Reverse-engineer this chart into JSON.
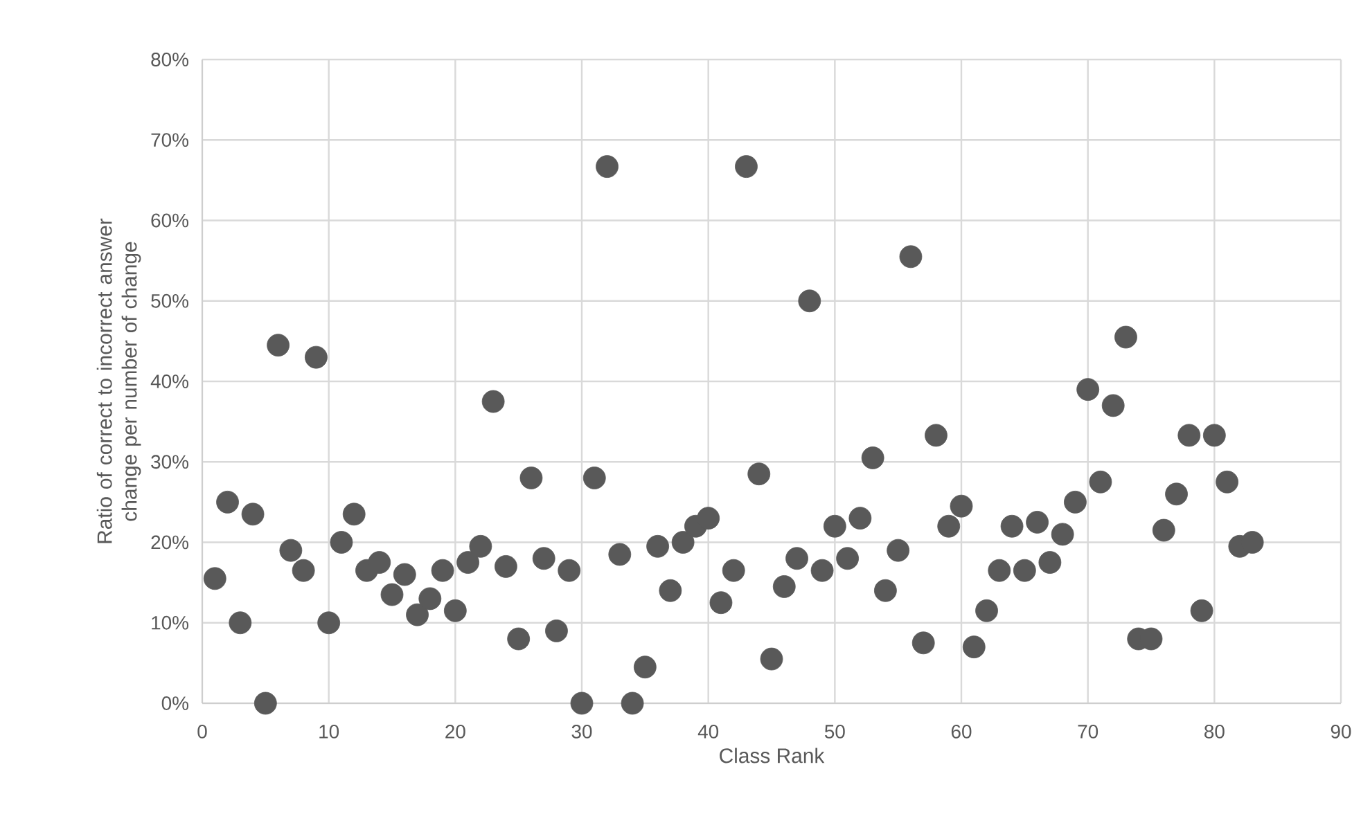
{
  "chart_data": {
    "type": "scatter",
    "xlabel": "Class Rank",
    "ylabel": "Ratio of correct to incorrect answer change per number of change",
    "x": [
      1,
      2,
      3,
      4,
      5,
      6,
      7,
      8,
      9,
      10,
      11,
      12,
      13,
      14,
      15,
      16,
      17,
      18,
      19,
      20,
      21,
      22,
      23,
      24,
      25,
      26,
      27,
      28,
      29,
      30,
      31,
      32,
      33,
      34,
      35,
      36,
      37,
      38,
      39,
      40,
      41,
      42,
      43,
      44,
      45,
      46,
      47,
      48,
      49,
      50,
      51,
      52,
      53,
      54,
      55,
      56,
      57,
      58,
      59,
      60,
      61,
      62,
      63,
      64,
      65,
      66,
      67,
      68,
      69,
      70,
      71,
      72,
      73,
      74,
      75,
      76,
      77,
      78,
      79,
      80,
      81,
      82,
      83
    ],
    "series": [
      {
        "color": "#595959",
        "values": [
          15.5,
          25,
          10,
          23.5,
          0,
          44.5,
          19,
          16.5,
          43,
          10,
          20,
          23.5,
          16.5,
          17.5,
          13.5,
          16,
          11,
          13,
          16.5,
          11.5,
          17.5,
          19.5,
          37.5,
          17,
          8,
          28,
          18,
          9,
          16.5,
          0,
          28,
          66.7,
          18.5,
          0,
          4.5,
          19.5,
          14,
          20,
          22,
          23,
          12.5,
          16.5,
          66.7,
          28.5,
          5.5,
          14.5,
          18,
          50,
          16.5,
          22,
          18,
          23,
          30.5,
          14,
          19,
          55.5,
          7.5,
          33.3,
          22,
          24.5,
          7,
          11.5,
          16.5,
          22,
          16.5,
          22.5,
          17.5,
          21,
          25,
          39,
          27.5,
          37,
          45.5,
          8,
          8,
          21.5,
          26,
          33.3,
          11.5,
          33.3,
          27.5,
          19.5,
          20
        ]
      }
    ],
    "xlim": [
      0,
      90
    ],
    "xticks": [
      0,
      10,
      20,
      30,
      40,
      50,
      60,
      70,
      80,
      90
    ],
    "ylim": [
      0,
      80
    ],
    "yticks": [
      {
        "value": 0,
        "label": "0%"
      },
      {
        "value": 10,
        "label": "10%"
      },
      {
        "value": 20,
        "label": "20%"
      },
      {
        "value": 30,
        "label": "30%"
      },
      {
        "value": 40,
        "label": "40%"
      },
      {
        "value": 50,
        "label": "50%"
      },
      {
        "value": 60,
        "label": "60%"
      },
      {
        "value": 70,
        "label": "70%"
      },
      {
        "value": 80,
        "label": "80%"
      }
    ],
    "grid": true
  }
}
